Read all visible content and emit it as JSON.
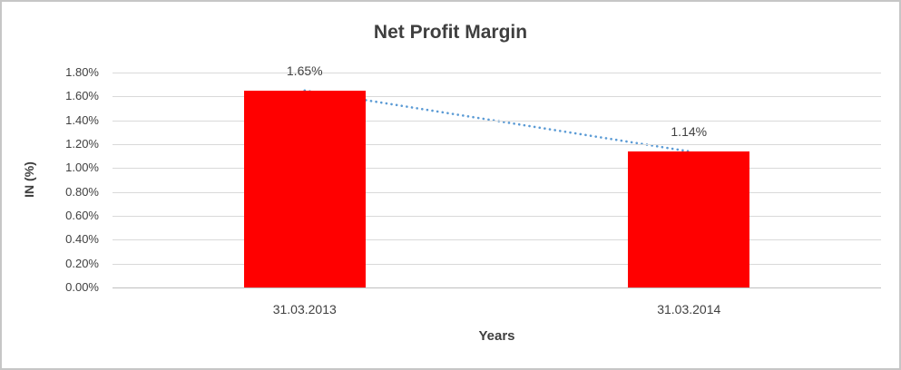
{
  "chart_data": {
    "type": "bar",
    "title": "Net Profit Margin",
    "categories": [
      "31.03.2013",
      "31.03.2014"
    ],
    "values": [
      1.65,
      1.14
    ],
    "value_labels": [
      "1.65%",
      "1.14%"
    ],
    "xlabel": "Years",
    "ylabel": "IN (%)",
    "ylim": [
      0,
      1.8
    ],
    "ytick_step": 0.2,
    "ytick_labels": [
      "1.80%",
      "1.60%",
      "1.40%",
      "1.20%",
      "1.00%",
      "0.80%",
      "0.60%",
      "0.40%",
      "0.20%",
      "0.00%"
    ],
    "grid": true,
    "legend": "none",
    "colors": {
      "bar": "#ff0000",
      "trendline": "#5b9bd5",
      "gridline": "#d9d9d9",
      "axis_line": "#bfbfbf",
      "text": "#404040"
    },
    "trendline": {
      "style": "dotted",
      "color": "#5b9bd5",
      "from_value": 1.65,
      "to_value": 1.14
    }
  }
}
